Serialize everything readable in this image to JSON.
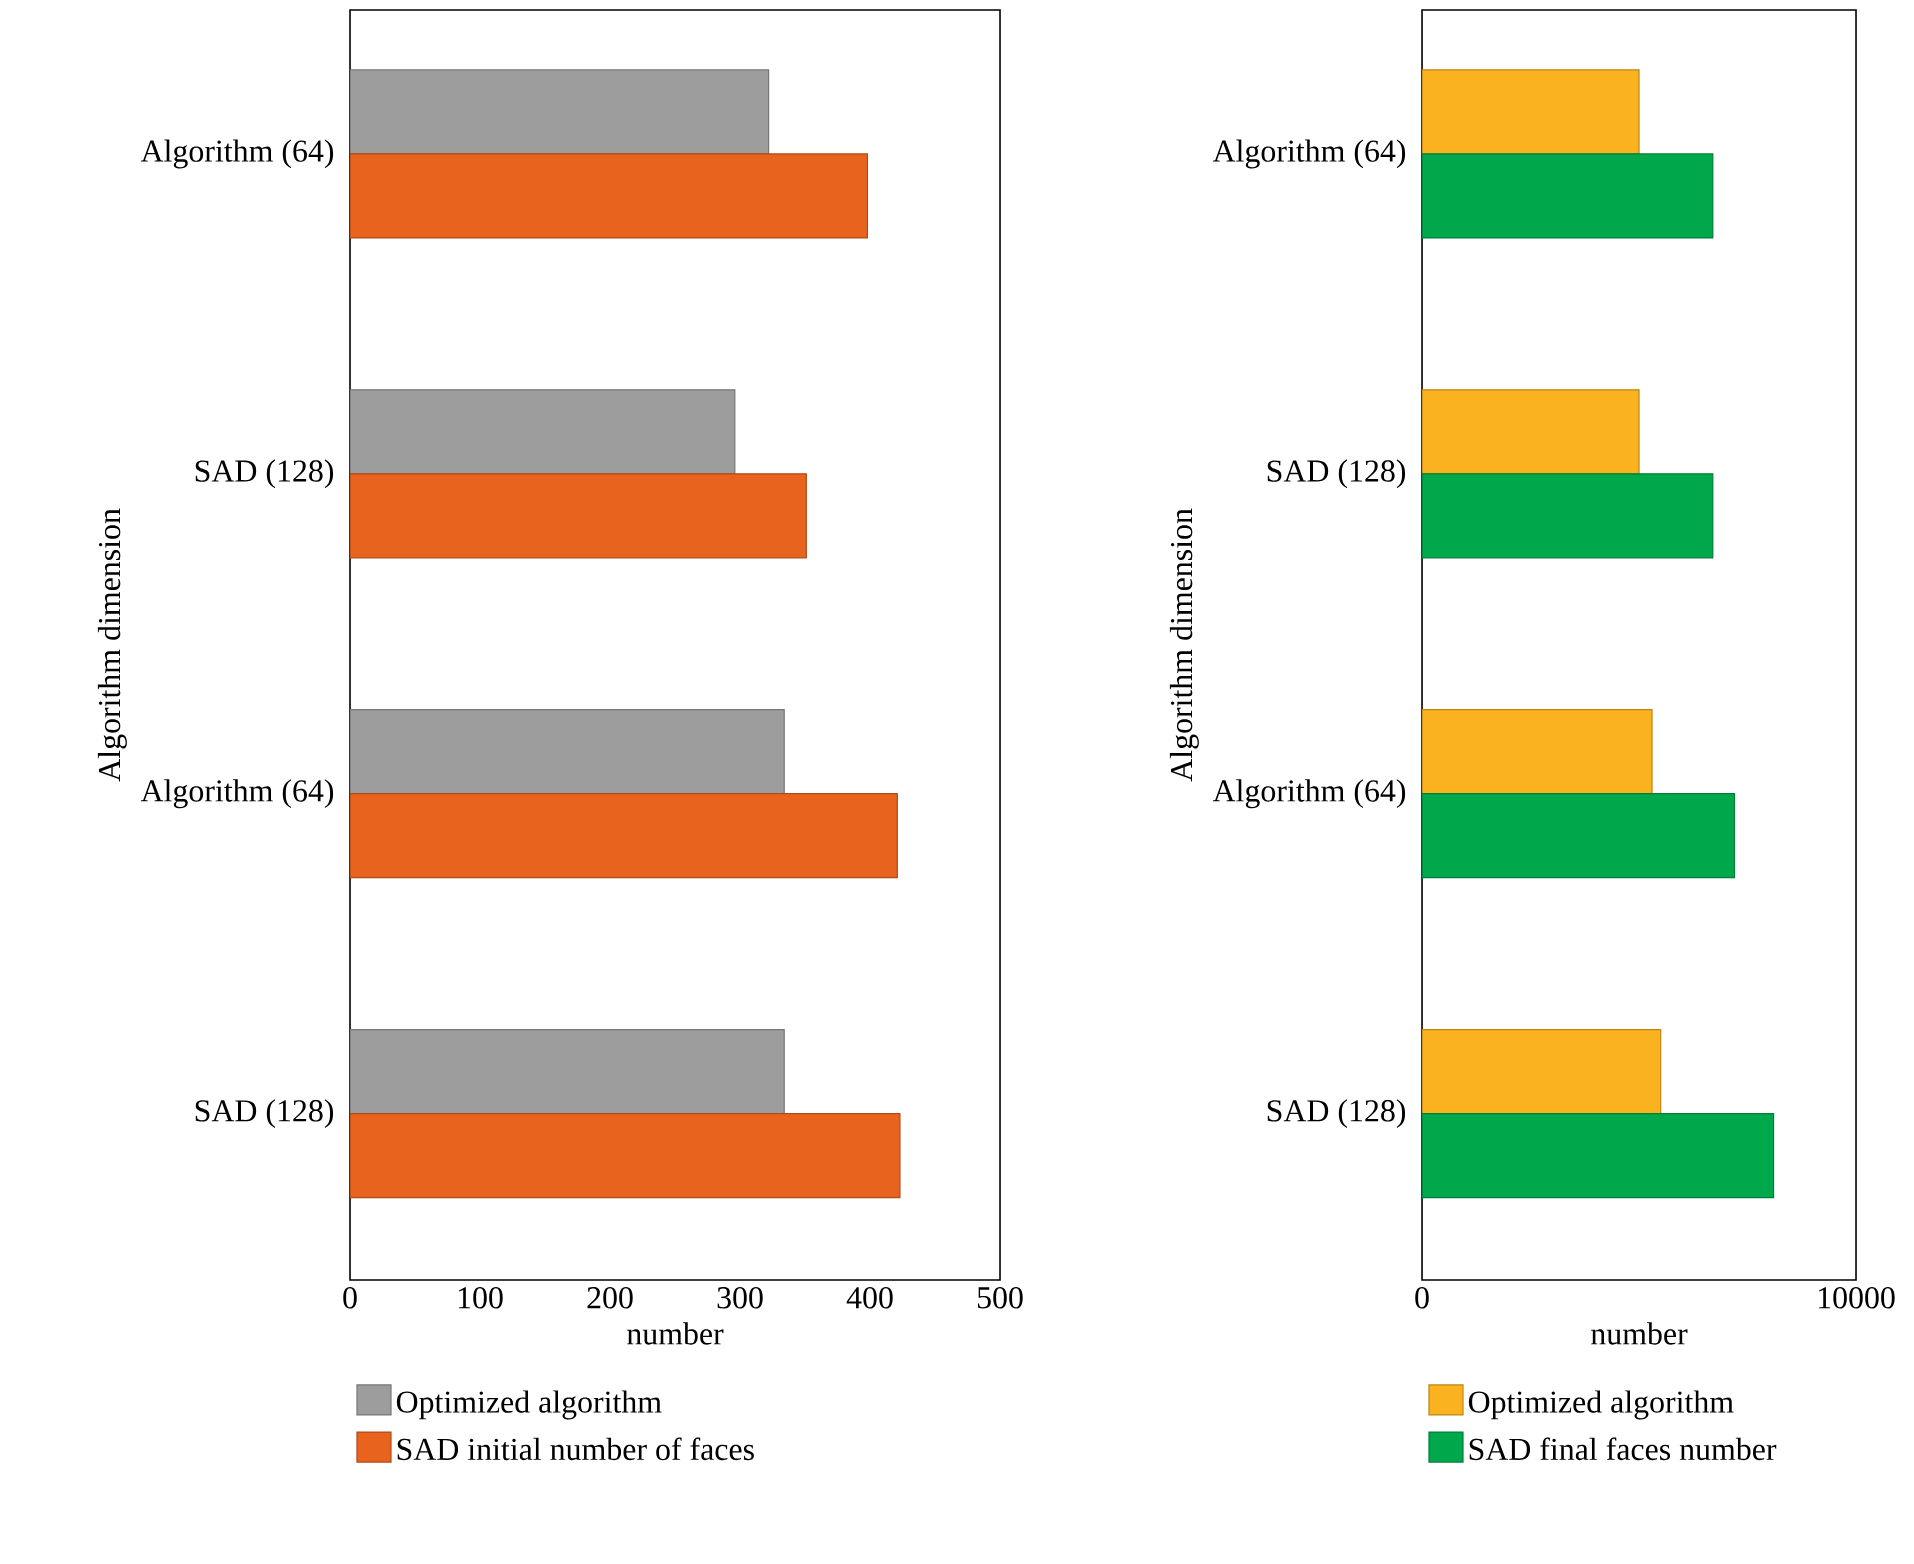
{
  "chart_data": [
    {
      "type": "bar",
      "orientation": "horizontal",
      "xlabel": "number",
      "ylabel": "Algorithm dimension",
      "categories": [
        "Algorithm (64)",
        "SAD (128)",
        "Algorithm (64)",
        "SAD (128)"
      ],
      "series": [
        {
          "name": "Optimized algorithm",
          "color": "#9d9d9d",
          "values": [
            322,
            296,
            334,
            334
          ]
        },
        {
          "name": "SAD initial number of faces",
          "color": "#e8641e",
          "values": [
            398,
            351,
            421,
            423
          ]
        }
      ],
      "xlim": [
        0,
        500
      ],
      "xticks": [
        0,
        100,
        200,
        300,
        400,
        500
      ],
      "legend": "bottom"
    },
    {
      "type": "bar",
      "orientation": "horizontal",
      "xlabel": "number",
      "ylabel": "Algorithm dimension",
      "categories": [
        "Algorithm (64)",
        "SAD (128)",
        "Algorithm (64)",
        "SAD (128)"
      ],
      "series": [
        {
          "name": "Optimized algorithm",
          "color": "#fbb21f",
          "values": [
            5000,
            5000,
            5300,
            5500
          ]
        },
        {
          "name": "SAD final faces number",
          "color": "#00a84c",
          "values": [
            6700,
            6700,
            7200,
            8100
          ]
        }
      ],
      "xlim": [
        0,
        10000
      ],
      "xticks": [
        0,
        10000
      ],
      "legend": "bottom"
    }
  ]
}
